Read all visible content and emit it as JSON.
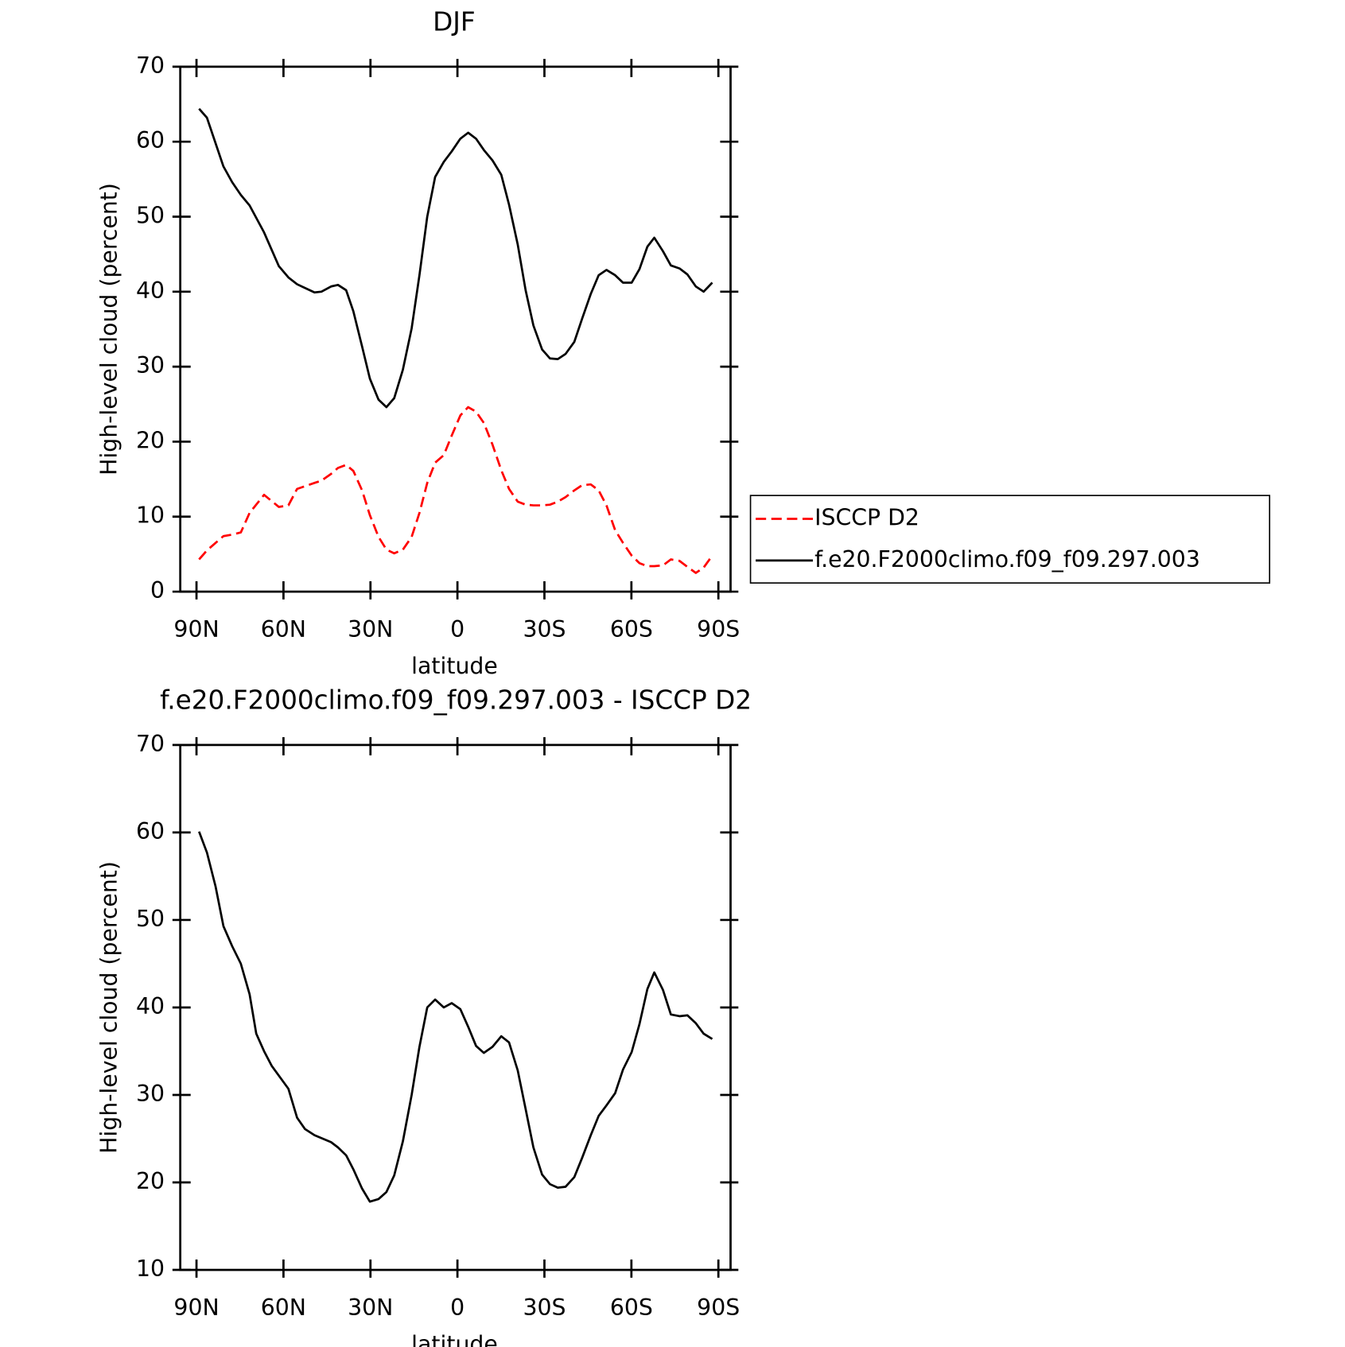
{
  "chart_data": [
    {
      "type": "line",
      "title": "DJF",
      "x_label": "latitude",
      "y_label": "High-level cloud (percent)",
      "xlim": [
        95.6,
        -94.2
      ],
      "ylim": [
        0,
        70
      ],
      "xticks": [
        {
          "value": 90,
          "label": "90N"
        },
        {
          "value": 60,
          "label": "60N"
        },
        {
          "value": 30,
          "label": "30N"
        },
        0,
        {
          "value": -30,
          "label": "30S"
        },
        {
          "value": -60,
          "label": "60S"
        },
        {
          "value": -90,
          "label": "90S"
        }
      ],
      "yticks": [
        0,
        10,
        20,
        30,
        40,
        50,
        60,
        70
      ],
      "legend": "right",
      "x": [
        89.1,
        86.4,
        80.7,
        77.7,
        74.7,
        71.7,
        66.7,
        61.6,
        58.3,
        55.3,
        49.3,
        46.9,
        43.6,
        41.2,
        38.4,
        35.9,
        32.9,
        30.2,
        27.2,
        24.5,
        21.8,
        18.8,
        15.8,
        13.1,
        10.4,
        7.7,
        4.7,
        2.0,
        -1.0,
        -3.7,
        -6.4,
        -9.1,
        -12.1,
        -15.1,
        -17.8,
        -20.8,
        -23.5,
        -26.2,
        -29.2,
        -31.9,
        -34.6,
        -37.3,
        -40.3,
        -43.0,
        -46.0,
        -48.7,
        -51.4,
        -54.4,
        -57.1,
        -60.1,
        -62.8,
        -65.5,
        -67.9,
        -70.9,
        -73.6,
        -76.6,
        -79.3,
        -82.2,
        -84.9,
        -87.9
      ],
      "series": [
        {
          "name": "ISCCP D2",
          "color": "#ff0000",
          "dashed": true,
          "values": [
            4.3,
            5.5,
            7.4,
            7.6,
            7.9,
            10.5,
            12.9,
            11.3,
            11.5,
            13.7,
            14.5,
            14.8,
            15.7,
            16.5,
            16.9,
            16.1,
            13.5,
            10.2,
            7.3,
            5.6,
            5.1,
            5.6,
            7.3,
            10.5,
            14.5,
            17.2,
            18.2,
            20.8,
            23.5,
            24.6,
            24.0,
            22.5,
            19.6,
            16.2,
            13.7,
            12.0,
            11.6,
            11.5,
            11.5,
            11.6,
            12.0,
            12.6,
            13.5,
            14.2,
            14.3,
            13.5,
            11.5,
            8.2,
            6.5,
            4.8,
            3.8,
            3.4,
            3.4,
            3.5,
            4.3,
            4.1,
            3.3,
            2.5,
            3.2,
            4.8
          ]
        },
        {
          "name": "f.e20.F2000climo.f09_f09.297.003",
          "color": "#000000",
          "dashed": false,
          "values": [
            64.4,
            63.2,
            56.7,
            54.6,
            52.9,
            51.5,
            47.9,
            43.4,
            41.9,
            41.0,
            39.9,
            40.0,
            40.7,
            40.9,
            40.2,
            37.4,
            32.7,
            28.4,
            25.6,
            24.6,
            25.8,
            29.6,
            35.1,
            42.2,
            50.0,
            55.3,
            57.3,
            58.7,
            60.4,
            61.2,
            60.4,
            58.9,
            57.5,
            55.6,
            51.6,
            46.3,
            40.2,
            35.5,
            32.3,
            31.1,
            31.0,
            31.7,
            33.3,
            36.4,
            39.7,
            42.2,
            42.9,
            42.2,
            41.2,
            41.2,
            43.0,
            46.0,
            47.2,
            45.4,
            43.5,
            43.1,
            42.3,
            40.7,
            40.0,
            41.2
          ]
        }
      ]
    },
    {
      "type": "line",
      "title": "f.e20.F2000climo.f09_f09.297.003 - ISCCP D2",
      "x_label": "latitude",
      "y_label": "High-level cloud (percent)",
      "xlim": [
        95.6,
        -94.2
      ],
      "ylim": [
        10,
        70
      ],
      "xticks": [
        {
          "value": 90,
          "label": "90N"
        },
        {
          "value": 60,
          "label": "60N"
        },
        {
          "value": 30,
          "label": "30N"
        },
        0,
        {
          "value": -30,
          "label": "30S"
        },
        {
          "value": -60,
          "label": "60S"
        },
        {
          "value": -90,
          "label": "90S"
        }
      ],
      "yticks": [
        10,
        20,
        30,
        40,
        50,
        60,
        70
      ],
      "x": [
        89.1,
        86.4,
        83.4,
        80.7,
        77.7,
        74.7,
        71.7,
        69.4,
        66.7,
        64.0,
        58.3,
        55.3,
        52.6,
        49.3,
        43.6,
        41.2,
        38.4,
        35.9,
        32.9,
        30.2,
        27.2,
        24.5,
        21.8,
        18.8,
        15.8,
        13.1,
        10.4,
        7.7,
        4.7,
        2.0,
        -1.0,
        -3.7,
        -6.4,
        -9.1,
        -12.1,
        -15.1,
        -17.8,
        -20.8,
        -23.5,
        -26.2,
        -29.2,
        -31.9,
        -34.6,
        -37.3,
        -40.3,
        -43.0,
        -46.0,
        -48.7,
        -51.4,
        -54.4,
        -57.1,
        -60.1,
        -62.8,
        -65.5,
        -67.9,
        -70.9,
        -73.6,
        -76.6,
        -79.3,
        -82.2,
        -84.9,
        -87.9
      ],
      "series": [
        {
          "color": "#000000",
          "dashed": false,
          "values": [
            60.1,
            57.7,
            53.8,
            49.3,
            47.0,
            45.0,
            41.5,
            37.0,
            35.0,
            33.3,
            30.7,
            27.4,
            26.1,
            25.4,
            24.6,
            24.0,
            23.1,
            21.5,
            19.3,
            17.8,
            18.1,
            18.9,
            20.8,
            24.7,
            30.0,
            35.5,
            40.0,
            40.9,
            40.0,
            40.5,
            39.8,
            37.8,
            35.6,
            34.8,
            35.5,
            36.7,
            36.0,
            32.8,
            28.4,
            24.0,
            20.9,
            19.8,
            19.4,
            19.5,
            20.6,
            22.8,
            25.4,
            27.6,
            28.8,
            30.2,
            32.9,
            34.9,
            38.1,
            42.1,
            44.0,
            42.0,
            39.2,
            39.0,
            39.1,
            38.2,
            37.0,
            36.4
          ]
        }
      ]
    }
  ]
}
